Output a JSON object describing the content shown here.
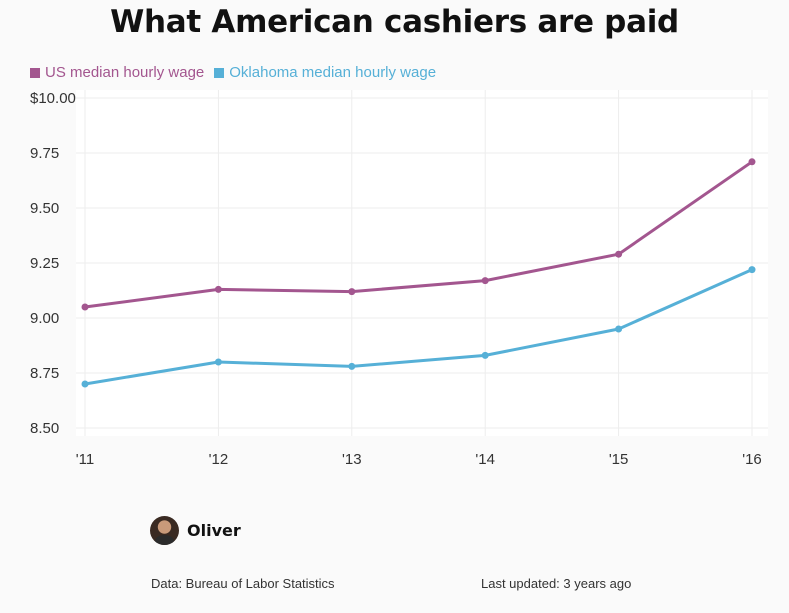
{
  "chart_data": {
    "type": "line",
    "title": "What American cashiers are paid",
    "categories": [
      "'11",
      "'12",
      "'13",
      "'14",
      "'15",
      "'16"
    ],
    "series": [
      {
        "name": "US median hourly wage",
        "color": "#a3568f",
        "values": [
          9.05,
          9.13,
          9.12,
          9.17,
          9.29,
          9.71
        ]
      },
      {
        "name": "Oklahoma median hourly wage",
        "color": "#56b0d7",
        "values": [
          8.7,
          8.8,
          8.78,
          8.83,
          8.95,
          9.22
        ]
      }
    ],
    "ylim": [
      8.5,
      10.0
    ],
    "yticks": [
      8.5,
      8.75,
      9.0,
      9.25,
      9.5,
      9.75,
      10.0
    ],
    "ytick_labels": [
      "8.50",
      "8.75",
      "9.00",
      "9.25",
      "9.50",
      "9.75",
      "$10.00"
    ],
    "grid": true,
    "legend_position": "top-left"
  },
  "author": {
    "name": "Oliver",
    "avatar_icon": "person-avatar"
  },
  "footer": {
    "source": "Data: Bureau of Labor Statistics",
    "updated": "Last updated: 3 years ago"
  }
}
